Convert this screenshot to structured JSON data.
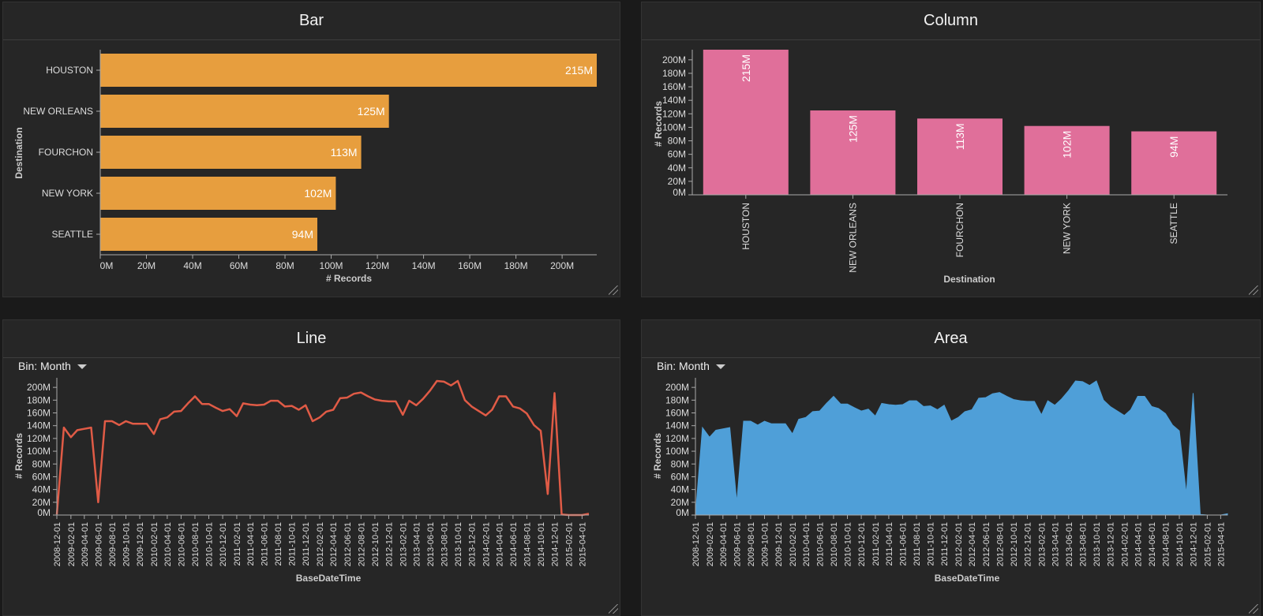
{
  "panels": {
    "bar": {
      "title": "Bar"
    },
    "column": {
      "title": "Column"
    },
    "line": {
      "title": "Line",
      "bin_label": "Bin: Month"
    },
    "area": {
      "title": "Area",
      "bin_label": "Bin: Month"
    }
  },
  "colors": {
    "bar": "#E79E3E",
    "column": "#E06F9A",
    "line": "#E05B46",
    "area": "#4F9FD8"
  },
  "chart_data": [
    {
      "type": "bar",
      "orientation": "horizontal",
      "title": "Bar",
      "categories": [
        "HOUSTON",
        "NEW ORLEANS",
        "FOURCHON",
        "NEW YORK",
        "SEATTLE"
      ],
      "values": [
        215,
        125,
        113,
        102,
        94
      ],
      "value_labels": [
        "215M",
        "125M",
        "113M",
        "102M",
        "94M"
      ],
      "xlabel": "# Records",
      "ylabel": "Destination",
      "ticks": [
        "0M",
        "20M",
        "40M",
        "60M",
        "80M",
        "100M",
        "120M",
        "140M",
        "160M",
        "180M",
        "200M"
      ],
      "xlim": [
        0,
        215
      ],
      "unit": "M"
    },
    {
      "type": "bar",
      "orientation": "vertical",
      "title": "Column",
      "categories": [
        "HOUSTON",
        "NEW ORLEANS",
        "FOURCHON",
        "NEW YORK",
        "SEATTLE"
      ],
      "values": [
        215,
        125,
        113,
        102,
        94
      ],
      "value_labels": [
        "215M",
        "125M",
        "113M",
        "102M",
        "94M"
      ],
      "xlabel": "Destination",
      "ylabel": "# Records",
      "ticks": [
        "0M",
        "20M",
        "40M",
        "60M",
        "80M",
        "100M",
        "120M",
        "140M",
        "160M",
        "180M",
        "200M"
      ],
      "ylim": [
        0,
        215
      ],
      "unit": "M"
    },
    {
      "type": "line",
      "title": "Line",
      "xlabel": "BaseDateTime",
      "ylabel": "# Records",
      "x_tick_labels": [
        "2008-12-01",
        "2009-02-01",
        "2009-04-01",
        "2009-06-01",
        "2009-08-01",
        "2009-10-01",
        "2009-12-01",
        "2010-02-01",
        "2010-04-01",
        "2010-06-01",
        "2010-08-01",
        "2010-10-01",
        "2010-12-01",
        "2011-02-01",
        "2011-04-01",
        "2011-06-01",
        "2011-08-01",
        "2011-10-01",
        "2011-12-01",
        "2012-02-01",
        "2012-04-01",
        "2012-06-01",
        "2012-08-01",
        "2012-10-01",
        "2012-12-01",
        "2013-02-01",
        "2013-04-01",
        "2013-06-01",
        "2013-08-01",
        "2013-10-01",
        "2013-12-01",
        "2014-02-01",
        "2014-04-01",
        "2014-06-01",
        "2014-08-01",
        "2014-10-01",
        "2014-12-01",
        "2015-02-01",
        "2015-04-01"
      ],
      "y_tick_labels": [
        "0M",
        "20M",
        "40M",
        "60M",
        "80M",
        "100M",
        "120M",
        "140M",
        "160M",
        "180M",
        "200M"
      ],
      "ylim": [
        0,
        215
      ],
      "x_start": "2008-12-01",
      "x_end": "2015-05-01",
      "x": [
        "2008-12",
        "2009-01",
        "2009-02",
        "2009-03",
        "2009-04",
        "2009-05",
        "2009-06",
        "2009-07",
        "2009-08",
        "2009-09",
        "2009-10",
        "2009-11",
        "2009-12",
        "2010-01",
        "2010-02",
        "2010-03",
        "2010-04",
        "2010-05",
        "2010-06",
        "2010-07",
        "2010-08",
        "2010-09",
        "2010-10",
        "2010-11",
        "2010-12",
        "2011-01",
        "2011-02",
        "2011-03",
        "2011-04",
        "2011-05",
        "2011-06",
        "2011-07",
        "2011-08",
        "2011-09",
        "2011-10",
        "2011-11",
        "2011-12",
        "2012-01",
        "2012-02",
        "2012-03",
        "2012-04",
        "2012-05",
        "2012-06",
        "2012-07",
        "2012-08",
        "2012-09",
        "2012-10",
        "2012-11",
        "2012-12",
        "2013-01",
        "2013-02",
        "2013-03",
        "2013-04",
        "2013-05",
        "2013-06",
        "2013-07",
        "2013-08",
        "2013-09",
        "2013-10",
        "2013-11",
        "2013-12",
        "2014-01",
        "2014-02",
        "2014-03",
        "2014-04",
        "2014-05",
        "2014-06",
        "2014-07",
        "2014-08",
        "2014-09",
        "2014-10",
        "2014-11",
        "2014-12",
        "2015-01",
        "2015-02",
        "2015-03",
        "2015-04",
        "2015-05"
      ],
      "values": [
        1,
        137,
        122,
        133,
        135,
        137,
        20,
        147,
        147,
        141,
        147,
        143,
        143,
        143,
        127,
        150,
        153,
        162,
        163,
        175,
        186,
        174,
        174,
        168,
        163,
        166,
        155,
        175,
        173,
        172,
        173,
        179,
        179,
        170,
        171,
        165,
        172,
        147,
        153,
        162,
        165,
        183,
        184,
        190,
        192,
        186,
        181,
        179,
        178,
        178,
        157,
        179,
        172,
        182,
        195,
        210,
        209,
        203,
        210,
        180,
        170,
        163,
        156,
        165,
        186,
        186,
        170,
        167,
        159,
        141,
        132,
        33,
        191,
        1,
        0,
        0,
        0,
        2
      ]
    },
    {
      "type": "area",
      "title": "Area",
      "xlabel": "BaseDateTime",
      "ylabel": "# Records",
      "x_tick_labels": [
        "2008-12-01",
        "2009-02-01",
        "2009-04-01",
        "2009-06-01",
        "2009-08-01",
        "2009-10-01",
        "2009-12-01",
        "2010-02-01",
        "2010-04-01",
        "2010-06-01",
        "2010-08-01",
        "2010-10-01",
        "2010-12-01",
        "2011-02-01",
        "2011-04-01",
        "2011-06-01",
        "2011-08-01",
        "2011-10-01",
        "2011-12-01",
        "2012-02-01",
        "2012-04-01",
        "2012-06-01",
        "2012-08-01",
        "2012-10-01",
        "2012-12-01",
        "2013-02-01",
        "2013-04-01",
        "2013-06-01",
        "2013-08-01",
        "2013-10-01",
        "2013-12-01",
        "2014-02-01",
        "2014-04-01",
        "2014-06-01",
        "2014-08-01",
        "2014-10-01",
        "2014-12-01",
        "2015-02-01",
        "2015-04-01"
      ],
      "y_tick_labels": [
        "0M",
        "20M",
        "40M",
        "60M",
        "80M",
        "100M",
        "120M",
        "140M",
        "160M",
        "180M",
        "200M"
      ],
      "ylim": [
        0,
        215
      ],
      "x_start": "2008-12-01",
      "x_end": "2015-05-01",
      "x": [
        "2008-12",
        "2009-01",
        "2009-02",
        "2009-03",
        "2009-04",
        "2009-05",
        "2009-06",
        "2009-07",
        "2009-08",
        "2009-09",
        "2009-10",
        "2009-11",
        "2009-12",
        "2010-01",
        "2010-02",
        "2010-03",
        "2010-04",
        "2010-05",
        "2010-06",
        "2010-07",
        "2010-08",
        "2010-09",
        "2010-10",
        "2010-11",
        "2010-12",
        "2011-01",
        "2011-02",
        "2011-03",
        "2011-04",
        "2011-05",
        "2011-06",
        "2011-07",
        "2011-08",
        "2011-09",
        "2011-10",
        "2011-11",
        "2011-12",
        "2012-01",
        "2012-02",
        "2012-03",
        "2012-04",
        "2012-05",
        "2012-06",
        "2012-07",
        "2012-08",
        "2012-09",
        "2012-10",
        "2012-11",
        "2012-12",
        "2013-01",
        "2013-02",
        "2013-03",
        "2013-04",
        "2013-05",
        "2013-06",
        "2013-07",
        "2013-08",
        "2013-09",
        "2013-10",
        "2013-11",
        "2013-12",
        "2014-01",
        "2014-02",
        "2014-03",
        "2014-04",
        "2014-05",
        "2014-06",
        "2014-07",
        "2014-08",
        "2014-09",
        "2014-10",
        "2014-11",
        "2014-12",
        "2015-01",
        "2015-02",
        "2015-03",
        "2015-04",
        "2015-05"
      ],
      "values": [
        1,
        137,
        122,
        133,
        135,
        137,
        20,
        147,
        147,
        141,
        147,
        143,
        143,
        143,
        127,
        150,
        153,
        162,
        163,
        175,
        186,
        174,
        174,
        168,
        163,
        166,
        155,
        175,
        173,
        172,
        173,
        179,
        179,
        170,
        171,
        165,
        172,
        147,
        153,
        162,
        165,
        183,
        184,
        190,
        192,
        186,
        181,
        179,
        178,
        178,
        157,
        179,
        172,
        182,
        195,
        210,
        209,
        203,
        210,
        180,
        170,
        163,
        156,
        165,
        186,
        186,
        170,
        167,
        159,
        141,
        132,
        33,
        191,
        1,
        0,
        0,
        0,
        2
      ]
    }
  ]
}
